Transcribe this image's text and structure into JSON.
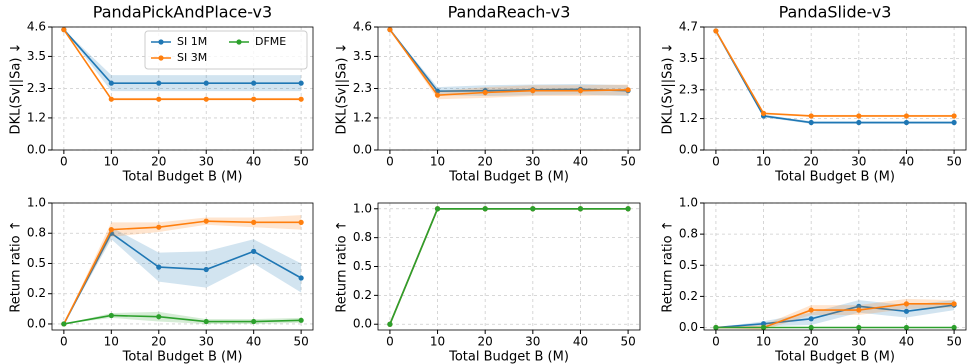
{
  "chart_data": [
    {
      "type": "line",
      "title": "PandaPickAndPlace-v3",
      "xlabel": "Total Budget B (M)",
      "ylabel": "DKL(Sv||Sa) ↓",
      "x": [
        0,
        10,
        20,
        30,
        40,
        50
      ],
      "xlim": [
        -2.5,
        52.5
      ],
      "xticks": [
        0,
        10,
        20,
        30,
        40,
        50
      ],
      "ylim": [
        0,
        4.6
      ],
      "yticks": [
        {
          "value": 0,
          "label": "0.0"
        },
        1.2,
        2.3,
        3.5,
        4.6
      ],
      "grid": true,
      "legend": "upper right",
      "series": [
        {
          "name": "SI 1M",
          "color": "#1f77b4",
          "values": [
            4.5,
            2.5,
            2.5,
            2.5,
            2.5,
            2.5
          ],
          "errors": [
            0,
            0.3,
            0.3,
            0.3,
            0.3,
            0.3
          ]
        },
        {
          "name": "SI 3M",
          "color": "#ff7f0e",
          "values": [
            4.5,
            1.9,
            1.9,
            1.9,
            1.9,
            1.9
          ],
          "errors": [
            0,
            0.05,
            0.05,
            0.05,
            0.05,
            0.05
          ]
        },
        {
          "name": "DFME",
          "color": "#2ca02c",
          "values": [
            null,
            null,
            null,
            null,
            null,
            null
          ]
        }
      ]
    },
    {
      "type": "line",
      "title": "PandaReach-v3",
      "xlabel": "Total Budget B (M)",
      "ylabel": "DKL(Sv||Sa) ↓",
      "x": [
        0,
        10,
        20,
        30,
        40,
        50
      ],
      "xlim": [
        -2.5,
        52.5
      ],
      "xticks": [
        0,
        10,
        20,
        30,
        40,
        50
      ],
      "ylim": [
        0,
        4.6
      ],
      "yticks": [
        {
          "value": 0,
          "label": "0.0"
        },
        1.2,
        2.3,
        3.5,
        4.6
      ],
      "grid": true,
      "series": [
        {
          "name": "SI 1M",
          "color": "#1f77b4",
          "values": [
            4.5,
            2.2,
            2.22,
            2.25,
            2.27,
            2.22
          ],
          "errors": [
            0,
            0.15,
            0.2,
            0.2,
            0.2,
            0.2
          ]
        },
        {
          "name": "SI 3M",
          "color": "#ff7f0e",
          "values": [
            4.5,
            2.05,
            2.15,
            2.22,
            2.22,
            2.25
          ],
          "errors": [
            0,
            0.15,
            0.2,
            0.2,
            0.2,
            0.2
          ]
        }
      ]
    },
    {
      "type": "line",
      "title": "PandaSlide-v3",
      "xlabel": "Total Budget B (M)",
      "ylabel": "DKL(Sv||Sa) ↓",
      "x": [
        0,
        10,
        20,
        30,
        40,
        50
      ],
      "xlim": [
        -2.5,
        52.5
      ],
      "xticks": [
        0,
        10,
        20,
        30,
        40,
        50
      ],
      "ylim": [
        0,
        4.7
      ],
      "yticks": [
        {
          "value": 0,
          "label": "0.0"
        },
        1.2,
        2.3,
        3.5,
        4.7
      ],
      "grid": true,
      "series": [
        {
          "name": "SI 1M",
          "color": "#1f77b4",
          "values": [
            4.55,
            1.3,
            1.05,
            1.05,
            1.05,
            1.05
          ],
          "errors": [
            0,
            0.05,
            0.05,
            0.05,
            0.05,
            0.05
          ]
        },
        {
          "name": "SI 3M",
          "color": "#ff7f0e",
          "values": [
            4.55,
            1.4,
            1.3,
            1.3,
            1.3,
            1.3
          ],
          "errors": [
            0,
            0.04,
            0.04,
            0.04,
            0.04,
            0.04
          ]
        }
      ]
    },
    {
      "type": "line",
      "xlabel": "Total Budget B (M)",
      "ylabel": "Return ratio ↑",
      "x": [
        0,
        10,
        20,
        30,
        40,
        50
      ],
      "xlim": [
        -2.5,
        52.5
      ],
      "xticks": [
        0,
        10,
        20,
        30,
        40,
        50
      ],
      "ylim": [
        -0.05,
        1.0
      ],
      "yticks": [
        {
          "value": 0,
          "label": "0.0"
        },
        {
          "value": 0.25,
          "label": "0.2"
        },
        0.5,
        {
          "value": 0.75,
          "label": "0.8"
        },
        {
          "value": 1,
          "label": "1.0"
        }
      ],
      "grid": true,
      "series": [
        {
          "name": "SI 1M",
          "color": "#1f77b4",
          "values": [
            0,
            0.75,
            0.47,
            0.45,
            0.6,
            0.38
          ],
          "errors": [
            0,
            0.05,
            0.12,
            0.15,
            0.1,
            0.12
          ]
        },
        {
          "name": "SI 3M",
          "color": "#ff7f0e",
          "values": [
            0,
            0.78,
            0.8,
            0.85,
            0.84,
            0.84
          ],
          "errors": [
            0,
            0.06,
            0.04,
            0.03,
            0.04,
            0.06
          ]
        },
        {
          "name": "DFME",
          "color": "#2ca02c",
          "values": [
            0,
            0.07,
            0.06,
            0.02,
            0.02,
            0.03
          ],
          "errors": [
            0,
            0.02,
            0.04,
            0.02,
            0.02,
            0.02
          ]
        }
      ]
    },
    {
      "type": "line",
      "xlabel": "Total Budget B (M)",
      "ylabel": "Return ratio ↑",
      "x": [
        0,
        10,
        20,
        30,
        40,
        50
      ],
      "xlim": [
        -2.5,
        52.5
      ],
      "xticks": [
        0,
        10,
        20,
        30,
        40,
        50
      ],
      "ylim": [
        -0.05,
        1.05
      ],
      "yticks": [
        {
          "value": 0,
          "label": "0.0"
        },
        {
          "value": 0.25,
          "label": "0.2"
        },
        0.5,
        {
          "value": 0.75,
          "label": "0.8"
        },
        {
          "value": 1,
          "label": "1.0"
        }
      ],
      "grid": true,
      "series": [
        {
          "name": "SI 1M",
          "color": "#1f77b4",
          "values": [
            0,
            1,
            1,
            1,
            1,
            1
          ]
        },
        {
          "name": "SI 3M",
          "color": "#ff7f0e",
          "values": [
            0,
            1,
            1,
            1,
            1,
            1
          ]
        },
        {
          "name": "DFME",
          "color": "#2ca02c",
          "values": [
            0,
            1,
            1,
            1,
            1,
            1
          ]
        }
      ]
    },
    {
      "type": "line",
      "xlabel": "Total Budget B (M)",
      "ylabel": "Return ratio ↑",
      "x": [
        0,
        10,
        20,
        30,
        40,
        50
      ],
      "xlim": [
        -2.5,
        52.5
      ],
      "xticks": [
        0,
        10,
        20,
        30,
        40,
        50
      ],
      "ylim": [
        -0.02,
        1.0
      ],
      "yticks": [
        {
          "value": 0,
          "label": "0.0"
        },
        {
          "value": 0.25,
          "label": "0.2"
        },
        0.5,
        {
          "value": 0.75,
          "label": "0.8"
        },
        {
          "value": 1,
          "label": "1.0"
        }
      ],
      "grid": true,
      "series": [
        {
          "name": "SI 1M",
          "color": "#1f77b4",
          "values": [
            0,
            0.03,
            0.07,
            0.17,
            0.13,
            0.18
          ],
          "errors": [
            0,
            0.02,
            0.05,
            0.05,
            0.05,
            0.04
          ]
        },
        {
          "name": "SI 3M",
          "color": "#ff7f0e",
          "values": [
            0,
            0.0,
            0.14,
            0.14,
            0.19,
            0.19
          ],
          "errors": [
            0,
            0.02,
            0.04,
            0.04,
            0.04,
            0.03
          ]
        },
        {
          "name": "DFME",
          "color": "#2ca02c",
          "values": [
            0,
            0,
            0,
            0,
            0,
            0
          ]
        }
      ]
    }
  ]
}
